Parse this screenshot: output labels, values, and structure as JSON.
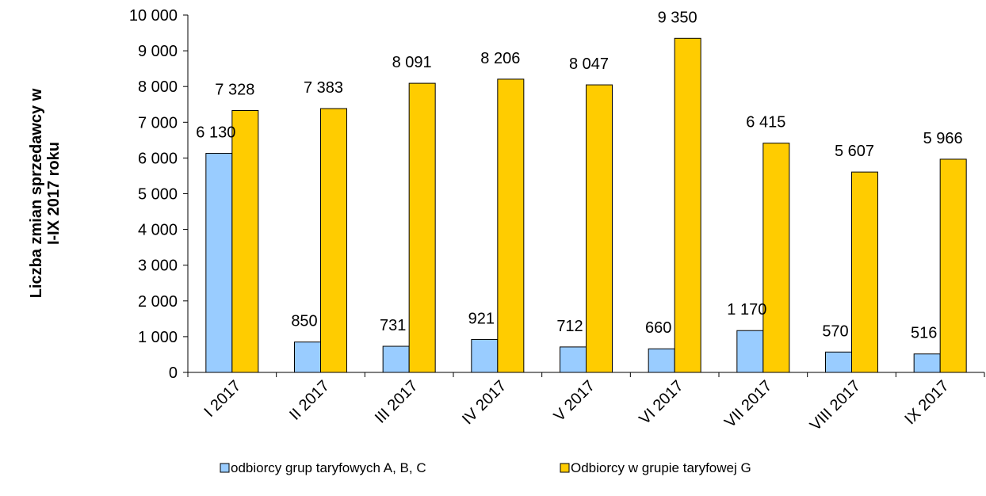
{
  "chart_data": {
    "type": "bar",
    "title": "",
    "ylabel_lines": [
      "Liczba zmian sprzedawcy w",
      "I-IX 2017 roku"
    ],
    "xlabel": "",
    "categories": [
      "I 2017",
      "II 2017",
      "III 2017",
      "IV 2017",
      "V 2017",
      "VI 2017",
      "VII 2017",
      "VIII 2017",
      "IX 2017"
    ],
    "series": [
      {
        "name": "odbiorcy grup taryfowych A, B, C",
        "color": "#99ccff",
        "values": [
          6130,
          850,
          731,
          921,
          712,
          660,
          1170,
          570,
          516
        ],
        "labels": [
          "6 130",
          "850",
          "731",
          "921",
          "712",
          "660",
          "1 170",
          "570",
          "516"
        ]
      },
      {
        "name": "Odbiorcy w grupie taryfowej G",
        "color": "#ffcc00",
        "values": [
          7328,
          7383,
          8091,
          8206,
          8047,
          9350,
          6415,
          5607,
          5966
        ],
        "labels": [
          "7 328",
          "7 383",
          "8 091",
          "8 206",
          "8 047",
          "9 350",
          "6 415",
          "5 607",
          "5 966"
        ]
      }
    ],
    "ylim": [
      0,
      10000
    ],
    "yticks": [
      0,
      1000,
      2000,
      3000,
      4000,
      5000,
      6000,
      7000,
      8000,
      9000,
      10000
    ],
    "ytick_labels": [
      "0",
      "1 000",
      "2 000",
      "3 000",
      "4 000",
      "5 000",
      "6 000",
      "7 000",
      "8 000",
      "9 000",
      "10 000"
    ],
    "grid": false,
    "legend_position": "bottom"
  }
}
